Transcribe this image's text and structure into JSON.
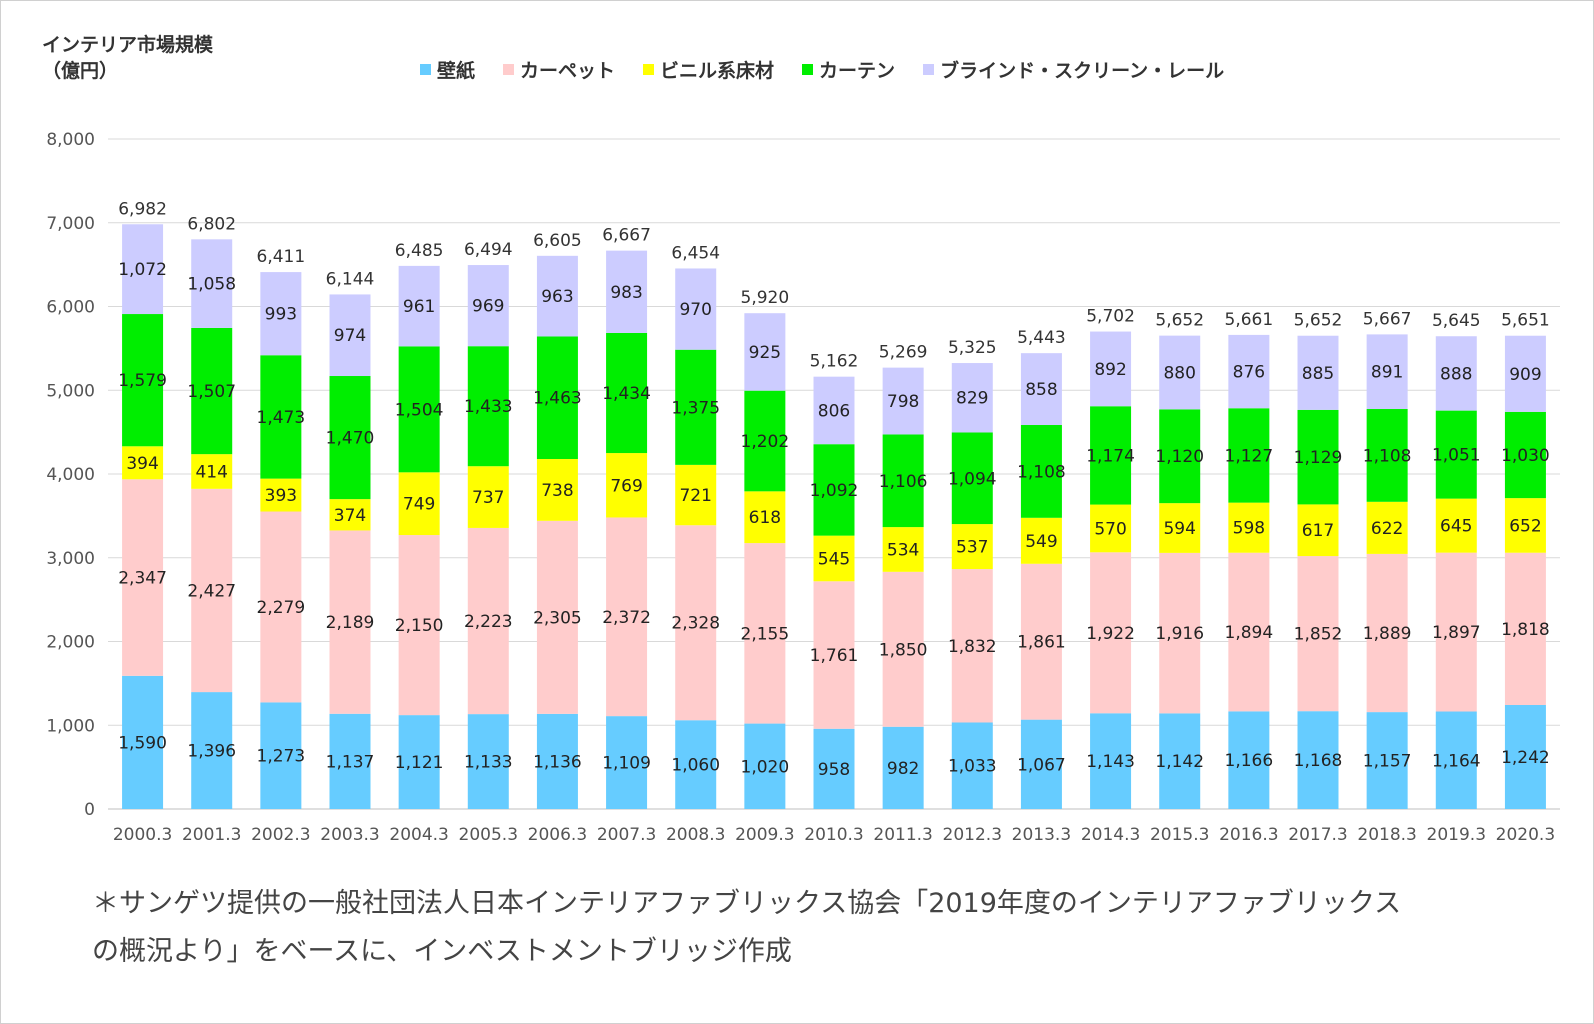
{
  "chart_data": {
    "type": "bar",
    "stacked": true,
    "ylabel_line1": "インテリア市場規模",
    "ylabel_line2": "（億円）",
    "ylim": [
      0,
      8000
    ],
    "yticks": [
      "0",
      "1,000",
      "2,000",
      "3,000",
      "4,000",
      "5,000",
      "6,000",
      "7,000",
      "8,000"
    ],
    "grid": true,
    "legend_position": "top",
    "categories": [
      "2000.3",
      "2001.3",
      "2002.3",
      "2003.3",
      "2004.3",
      "2005.3",
      "2006.3",
      "2007.3",
      "2008.3",
      "2009.3",
      "2010.3",
      "2011.3",
      "2012.3",
      "2013.3",
      "2014.3",
      "2015.3",
      "2016.3",
      "2017.3",
      "2018.3",
      "2019.3",
      "2020.3"
    ],
    "series": [
      {
        "name": "壁紙",
        "color": "#66ccff",
        "values": [
          1590,
          1396,
          1273,
          1137,
          1121,
          1133,
          1136,
          1109,
          1060,
          1020,
          958,
          982,
          1033,
          1067,
          1143,
          1142,
          1166,
          1168,
          1157,
          1164,
          1242
        ]
      },
      {
        "name": "カーペット",
        "color": "#ffcccc",
        "values": [
          2347,
          2427,
          2279,
          2189,
          2150,
          2223,
          2305,
          2372,
          2328,
          2155,
          1761,
          1850,
          1832,
          1861,
          1922,
          1916,
          1894,
          1852,
          1889,
          1897,
          1818
        ]
      },
      {
        "name": "ビニル系床材",
        "color": "#ffff00",
        "values": [
          394,
          414,
          393,
          374,
          749,
          737,
          738,
          769,
          721,
          618,
          545,
          534,
          537,
          549,
          570,
          594,
          598,
          617,
          622,
          645,
          652
        ]
      },
      {
        "name": "カーテン",
        "color": "#00ee00",
        "values": [
          1579,
          1507,
          1473,
          1470,
          1504,
          1433,
          1463,
          1434,
          1375,
          1202,
          1092,
          1106,
          1094,
          1108,
          1174,
          1120,
          1127,
          1129,
          1108,
          1051,
          1030
        ]
      },
      {
        "name": "ブラインド・スクリーン・レール",
        "color": "#ccccff",
        "values": [
          1072,
          1058,
          993,
          974,
          961,
          969,
          963,
          983,
          970,
          925,
          806,
          798,
          829,
          858,
          892,
          880,
          876,
          885,
          891,
          888,
          909
        ]
      }
    ],
    "totals": [
      6982,
      6802,
      6411,
      6144,
      6485,
      6494,
      6605,
      6667,
      6454,
      5920,
      5162,
      5269,
      5325,
      5443,
      5702,
      5652,
      5661,
      5652,
      5667,
      5645,
      5651
    ]
  },
  "note_line1": "＊サンゲツ提供の一般社団法人日本インテリアファブリックス協会「2019年度のインテリアファブリックス",
  "note_line2": "の概況より」をベースに、インベストメントブリッジ作成"
}
